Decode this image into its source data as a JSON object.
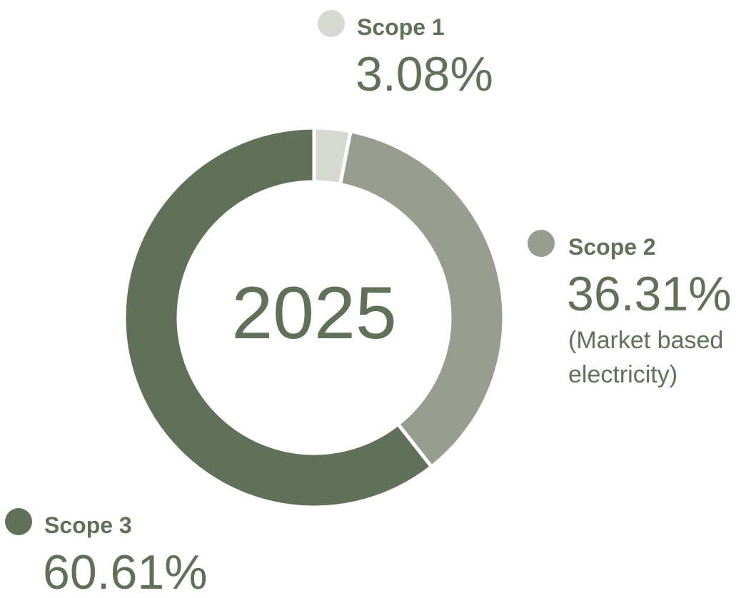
{
  "chart_data": {
    "type": "donut",
    "center_label": "2025",
    "categories": [
      "Scope 1",
      "Scope 2",
      "Scope 3"
    ],
    "values": [
      3.08,
      36.31,
      60.61
    ],
    "value_labels": [
      "3.08%",
      "36.31%",
      "60.61%"
    ],
    "colors": [
      "#d6d9d2",
      "#979e8f",
      "#617058"
    ],
    "annotations": [
      {
        "category": "Scope 2",
        "text": "(Market based electricity)"
      }
    ]
  }
}
